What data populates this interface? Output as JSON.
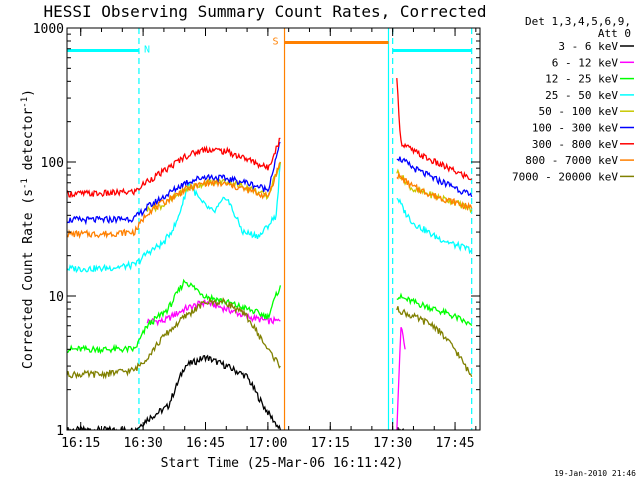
{
  "chart_data": {
    "type": "line",
    "title": "HESSI Observing Summary Count Rates, Corrected",
    "ylabel_parts": [
      "Corrected Count Rate (s",
      "-1",
      " detector",
      "-1",
      ")"
    ],
    "xlabel": "Start Time (25-Mar-06 16:11:42)",
    "xlim": [
      "16:11:42",
      "17:51:00"
    ],
    "ylim": [
      1,
      1000
    ],
    "yscale": "log",
    "x_ticks": [
      "16:15",
      "16:30",
      "16:45",
      "17:00",
      "17:15",
      "17:30",
      "17:45"
    ],
    "y_ticks": [
      {
        "value": 1,
        "label": "1"
      },
      {
        "value": 10,
        "label": "10"
      },
      {
        "value": 100,
        "label": "100"
      },
      {
        "value": 1000,
        "label": "1000"
      }
    ],
    "legend_header": [
      "Det 1,3,4,5,6,9,",
      "Att 0"
    ],
    "legend_position": "right",
    "footer_date": "19-Jan-2010 21:46",
    "annotations": [
      {
        "label": "N",
        "color": "#00ffff",
        "x_start": "16:11:42",
        "x_end": "16:29:00",
        "y": 680
      },
      {
        "label": "S",
        "color": "#ff8000",
        "x_start": "17:04:00",
        "x_end": "17:29:00",
        "y": 780
      },
      {
        "label": "",
        "color": "#00ffff",
        "x_start": "17:30:00",
        "x_end": "17:49:00",
        "y": 680
      }
    ],
    "vlines": [
      {
        "x": "16:29:00",
        "color": "#00ffff",
        "style": "dashed"
      },
      {
        "x": "17:04:00",
        "color": "#ff8000",
        "style": "solid"
      },
      {
        "x": "17:29:00",
        "color": "#00ffff",
        "style": "solid"
      },
      {
        "x": "17:30:00",
        "color": "#00ffff",
        "style": "dashed"
      },
      {
        "x": "17:49:00",
        "color": "#00ffff",
        "style": "dashed"
      }
    ],
    "series": [
      {
        "name": "3 - 6 keV",
        "color": "#000000",
        "x": [
          "16:11:42",
          "16:20",
          "16:28",
          "16:31",
          "16:36",
          "16:40",
          "16:45",
          "16:50",
          "16:55",
          "16:59",
          "17:03",
          "17:31",
          "17:33"
        ],
        "values": [
          1,
          1,
          1,
          1.2,
          1.5,
          3,
          3.5,
          3,
          2.5,
          1.5,
          1,
          1,
          1
        ]
      },
      {
        "name": "6 - 12 keV",
        "color": "#ff00ff",
        "x": [
          "16:31",
          "16:35",
          "16:40",
          "16:45",
          "16:50",
          "16:55",
          "17:00",
          "17:03",
          "17:31",
          "17:32",
          "17:33"
        ],
        "values": [
          6.5,
          6.5,
          8,
          9,
          8,
          7,
          6.5,
          6.5,
          1,
          6,
          4
        ]
      },
      {
        "name": "12 - 25 keV",
        "color": "#00ff00",
        "x": [
          "16:11:42",
          "16:20",
          "16:28",
          "16:31",
          "16:36",
          "16:40",
          "16:45",
          "16:50",
          "16:55",
          "17:00",
          "17:03",
          "17:31",
          "17:35",
          "17:40",
          "17:45",
          "17:49"
        ],
        "values": [
          4,
          4,
          4,
          6,
          8,
          13,
          10,
          9,
          8,
          7,
          12,
          10,
          9,
          8,
          7,
          6
        ]
      },
      {
        "name": "25 - 50 keV",
        "color": "#00ffff",
        "x": [
          "16:11:42",
          "16:20",
          "16:28",
          "16:31",
          "16:35",
          "16:38",
          "16:41",
          "16:44",
          "16:47",
          "16:50",
          "16:54",
          "16:58",
          "17:02",
          "17:03",
          "17:31",
          "17:33",
          "17:35",
          "17:40",
          "17:45",
          "17:49"
        ],
        "values": [
          16,
          16,
          17,
          21,
          25,
          35,
          70,
          50,
          42,
          55,
          30,
          28,
          40,
          100,
          55,
          42,
          35,
          28,
          24,
          22
        ]
      },
      {
        "name": "50 - 100 keV",
        "color": "#c8c800",
        "x": [
          "16:31",
          "16:35",
          "16:40",
          "16:45",
          "16:50",
          "16:55",
          "17:00",
          "17:03",
          "17:31",
          "17:35",
          "17:40",
          "17:45",
          "17:49"
        ],
        "values": [
          44,
          48,
          62,
          70,
          72,
          65,
          55,
          100,
          85,
          62,
          56,
          50,
          44
        ]
      },
      {
        "name": "100 - 300 keV",
        "color": "#0000ff",
        "x": [
          "16:11:42",
          "16:20",
          "16:28",
          "16:31",
          "16:35",
          "16:40",
          "16:45",
          "16:50",
          "16:55",
          "17:00",
          "17:03",
          "17:31",
          "17:35",
          "17:40",
          "17:45",
          "17:49"
        ],
        "values": [
          37,
          37,
          38,
          46,
          55,
          70,
          78,
          75,
          70,
          62,
          140,
          110,
          90,
          75,
          65,
          55
        ]
      },
      {
        "name": "300 - 800 keV",
        "color": "#ff0000",
        "x": [
          "16:11:42",
          "16:20",
          "16:28",
          "16:31",
          "16:35",
          "16:40",
          "16:45",
          "16:50",
          "16:55",
          "17:00",
          "17:03",
          "17:31",
          "17:32",
          "17:35",
          "17:40",
          "17:45",
          "17:49"
        ],
        "values": [
          58,
          58,
          60,
          72,
          85,
          110,
          125,
          120,
          105,
          90,
          150,
          400,
          140,
          120,
          100,
          85,
          75
        ]
      },
      {
        "name": "800 - 7000 keV",
        "color": "#ff8000",
        "x": [
          "16:11:42",
          "16:20",
          "16:28",
          "16:31",
          "16:35",
          "16:40",
          "16:45",
          "16:50",
          "16:55",
          "17:00",
          "17:03",
          "17:31",
          "17:35",
          "17:40",
          "17:45",
          "17:49"
        ],
        "values": [
          29,
          29,
          30,
          42,
          50,
          62,
          70,
          68,
          62,
          55,
          100,
          80,
          65,
          56,
          50,
          45
        ]
      },
      {
        "name": "7000 - 20000 keV",
        "color": "#808000",
        "x": [
          "16:11:42",
          "16:20",
          "16:28",
          "16:31",
          "16:35",
          "16:40",
          "16:45",
          "16:50",
          "16:55",
          "17:00",
          "17:03",
          "17:31",
          "17:35",
          "17:40",
          "17:45",
          "17:49"
        ],
        "values": [
          2.6,
          2.6,
          2.8,
          3.5,
          5,
          7,
          9,
          9,
          7,
          4,
          3,
          8,
          7,
          6,
          4,
          2.5
        ]
      }
    ]
  }
}
